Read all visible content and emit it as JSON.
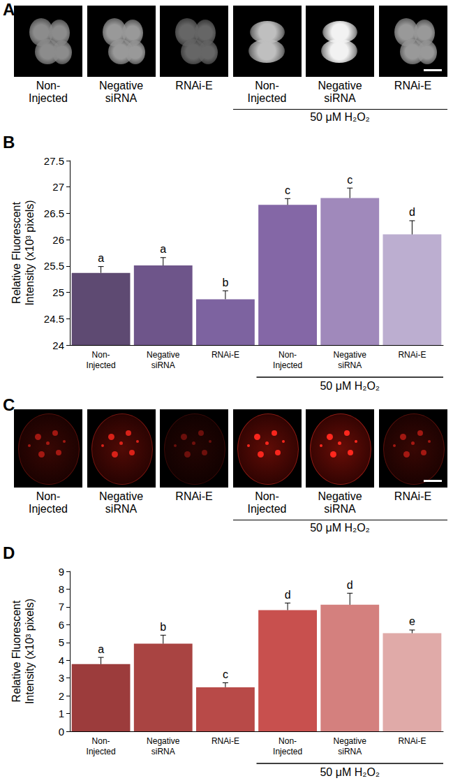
{
  "panels": {
    "A": {
      "letter": "A",
      "image_labels": [
        "Non-\nInjected",
        "Negative\nsiRNA",
        "RNAi-E",
        "Non-\nInjected",
        "Negative\nsiRNA",
        "RNAi-E"
      ],
      "group_label": "50 μM H₂O₂",
      "group_span": [
        3,
        5
      ]
    },
    "C": {
      "letter": "C",
      "image_labels": [
        "Non-\nInjected",
        "Negative\nsiRNA",
        "RNAi-E",
        "Non-\nInjected",
        "Negative\nsiRNA",
        "RNAi-E"
      ],
      "group_label": "50 μM H₂O₂",
      "group_span": [
        3,
        5
      ]
    }
  },
  "chart_data": [
    {
      "panel": "B",
      "type": "bar",
      "categories": [
        "Non-\nInjected",
        "Negative\nsiRNA",
        "RNAi-E",
        "Non-\nInjected",
        "Negative\nsiRNA",
        "RNAi-E"
      ],
      "values": [
        25.37,
        25.51,
        24.87,
        26.66,
        26.79,
        26.1
      ],
      "errors": [
        0.12,
        0.15,
        0.16,
        0.12,
        0.19,
        0.26
      ],
      "significance_letters": [
        "a",
        "a",
        "b",
        "c",
        "c",
        "d"
      ],
      "colors": [
        "#5e4a72",
        "#6e558a",
        "#7d63a0",
        "#8467a6",
        "#a089bb",
        "#bcaed0"
      ],
      "y_label": "Relative Fluorescent\nIntensity (x10³ pixels)",
      "ylim": [
        24,
        27.5
      ],
      "yticks": [
        24,
        24.5,
        25,
        25.5,
        26,
        26.5,
        27,
        27.5
      ],
      "grid": false,
      "annotations": [
        {
          "text": "50 μM H₂O₂",
          "span": [
            3,
            5
          ]
        }
      ]
    },
    {
      "panel": "D",
      "type": "bar",
      "categories": [
        "Non-\nInjected",
        "Negative\nsiRNA",
        "RNAi-E",
        "Non-\nInjected",
        "Negative\nsiRNA",
        "RNAi-E"
      ],
      "values": [
        3.78,
        4.93,
        2.48,
        6.82,
        7.12,
        5.52
      ],
      "errors": [
        0.38,
        0.48,
        0.25,
        0.4,
        0.65,
        0.18
      ],
      "significance_letters": [
        "a",
        "b",
        "c",
        "d",
        "d",
        "e"
      ],
      "colors": [
        "#9c3c3c",
        "#a94442",
        "#b84a48",
        "#c8504e",
        "#d4807e",
        "#e0aaa8"
      ],
      "y_label": "Relative Fluorescent\nIntensity (x10³ pixels)",
      "ylim": [
        0,
        9
      ],
      "yticks": [
        0,
        1,
        2,
        3,
        4,
        5,
        6,
        7,
        8,
        9
      ],
      "grid": false,
      "annotations": [
        {
          "text": "50 μM H₂O₂",
          "span": [
            3,
            5
          ]
        }
      ]
    }
  ]
}
